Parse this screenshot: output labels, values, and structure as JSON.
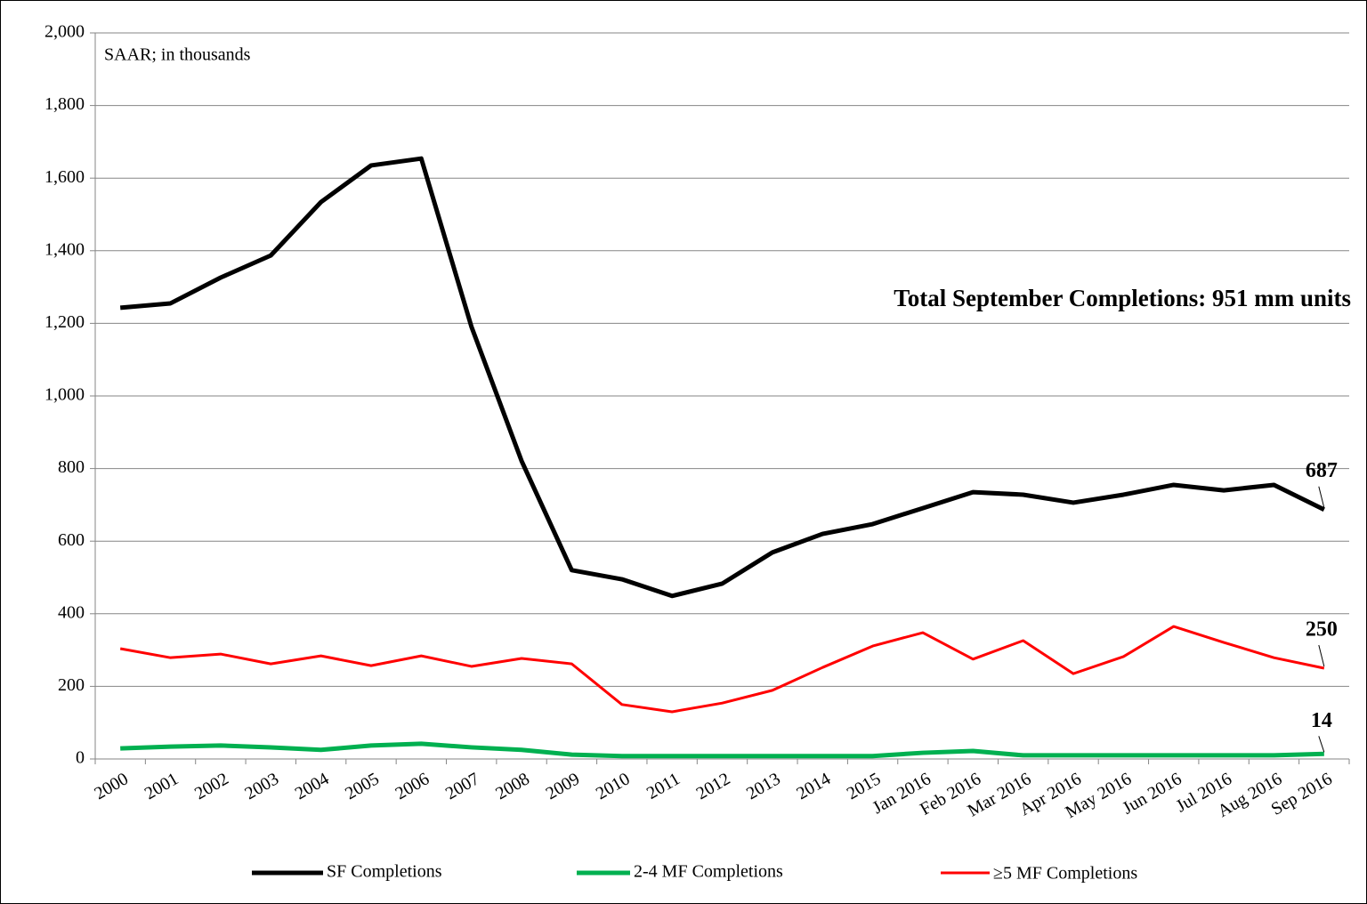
{
  "chart_data": {
    "type": "line",
    "annotations": [
      "SAAR; in thousands",
      "Total September Completions: 951 mm units"
    ],
    "categories": [
      "2000",
      "2001",
      "2002",
      "2003",
      "2004",
      "2005",
      "2006",
      "2007",
      "2008",
      "2009",
      "2010",
      "2011",
      "2012",
      "2013",
      "2014",
      "2015",
      "Jan 2016",
      "Feb 2016",
      "Mar 2016",
      "Apr 2016",
      "May 2016",
      "Jun 2016",
      "Jul 2016",
      "Aug 2016",
      "Sep 2016"
    ],
    "series": [
      {
        "name": "SF Completions",
        "color": "#000000",
        "values": [
          1243,
          1255,
          1326,
          1387,
          1534,
          1635,
          1654,
          1191,
          821,
          520,
          495,
          449,
          483,
          569,
          620,
          647,
          691,
          735,
          728,
          706,
          728,
          755,
          740,
          755,
          687
        ]
      },
      {
        "name": "2-4 MF Completions",
        "color": "#00b050",
        "values": [
          29,
          34,
          37,
          32,
          25,
          37,
          42,
          32,
          25,
          12,
          8,
          8,
          8,
          8,
          8,
          8,
          17,
          22,
          10,
          10,
          10,
          10,
          10,
          10,
          14
        ]
      },
      {
        "name": "≥5 MF Completions",
        "color": "#ff0000",
        "values": [
          304,
          279,
          289,
          262,
          284,
          257,
          284,
          255,
          277,
          262,
          150,
          130,
          154,
          189,
          252,
          311,
          348,
          275,
          326,
          235,
          282,
          365,
          321,
          279,
          250
        ]
      }
    ],
    "ylim": [
      0,
      2000
    ],
    "yticks": [
      0,
      200,
      400,
      600,
      800,
      {
        "value": 1000,
        "label": "1,000"
      },
      {
        "value": 1200,
        "label": "1,200"
      },
      {
        "value": 1400,
        "label": "1,400"
      },
      {
        "value": 1600,
        "label": "1,600"
      },
      {
        "value": 1800,
        "label": "1,800"
      },
      {
        "value": 2000,
        "label": "2,000"
      }
    ],
    "grid": true
  }
}
